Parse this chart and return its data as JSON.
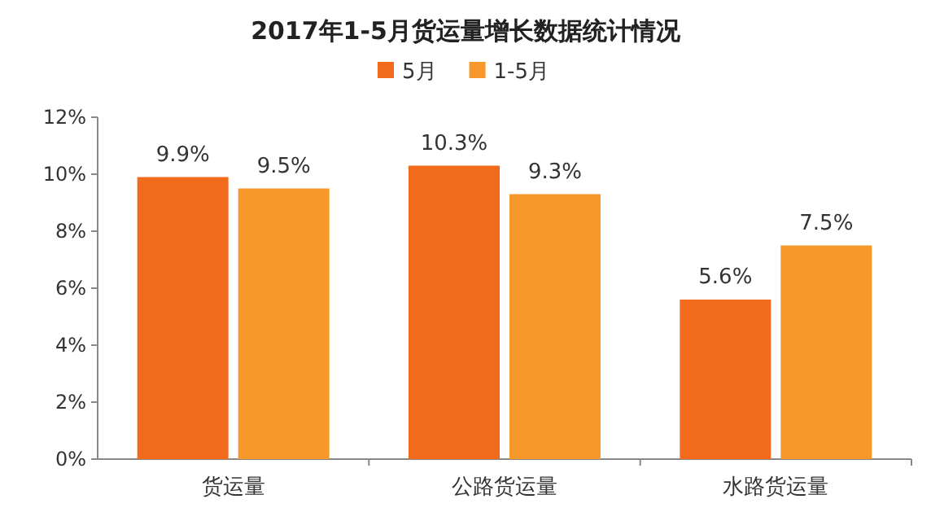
{
  "chart_data": {
    "type": "bar",
    "title": "2017年1-5月货运量增长数据统计情况",
    "categories": [
      "货运量",
      "公路货运量",
      "水路货运量"
    ],
    "series": [
      {
        "name": "5月",
        "color": "#f26a1b",
        "values": [
          9.9,
          10.3,
          5.6
        ],
        "value_labels": [
          "9.9%",
          "10.3%",
          "5.6%"
        ]
      },
      {
        "name": "1-5月",
        "color": "#f7982a",
        "values": [
          9.5,
          9.3,
          7.5
        ],
        "value_labels": [
          "9.5%",
          "9.3%",
          "7.5%"
        ]
      }
    ],
    "ylim": [
      0,
      12
    ],
    "yticks": [
      {
        "value": 0,
        "label": "0%"
      },
      {
        "value": 2,
        "label": "2%"
      },
      {
        "value": 4,
        "label": "4%"
      },
      {
        "value": 6,
        "label": "6%"
      },
      {
        "value": 8,
        "label": "8%"
      },
      {
        "value": 10,
        "label": "10%"
      },
      {
        "value": 12,
        "label": "12%"
      }
    ],
    "legend": "top",
    "grid": false
  }
}
